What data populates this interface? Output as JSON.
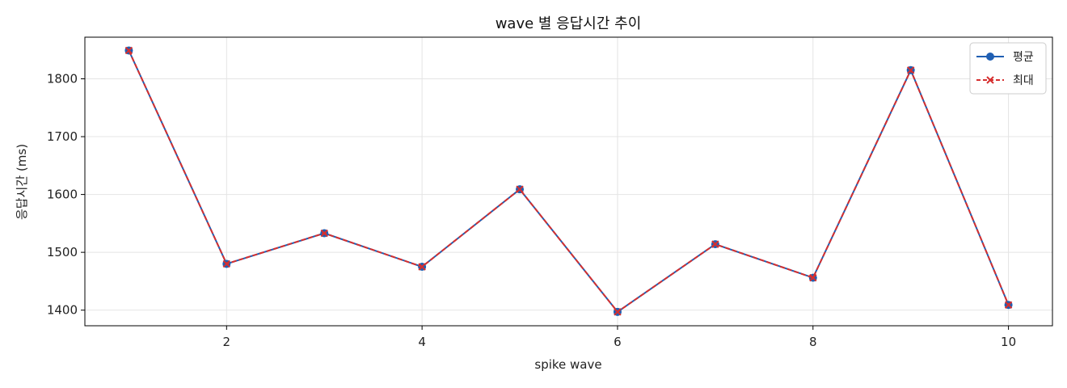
{
  "chart_data": {
    "type": "line",
    "title": "wave 별 응답시간 추이",
    "xlabel": "spike wave",
    "ylabel": "응답시간 (ms)",
    "x": [
      1,
      2,
      3,
      4,
      5,
      6,
      7,
      8,
      9,
      10
    ],
    "xlim": [
      0.55,
      10.45
    ],
    "ylim": [
      1373,
      1872
    ],
    "xticks": [
      2,
      4,
      6,
      8,
      10
    ],
    "yticks": [
      1400,
      1500,
      1600,
      1700,
      1800
    ],
    "grid": true,
    "legend_position": "top-right",
    "series": [
      {
        "name": "평균",
        "values": [
          1849,
          1480,
          1533,
          1475,
          1609,
          1397,
          1514,
          1456,
          1815,
          1409
        ],
        "color": "#1f5fb3",
        "line_style": "solid",
        "marker": "circle"
      },
      {
        "name": "최대",
        "values": [
          1849,
          1480,
          1533,
          1475,
          1609,
          1397,
          1514,
          1456,
          1815,
          1409
        ],
        "color": "#d62f2f",
        "line_style": "dashed",
        "marker": "x"
      }
    ]
  }
}
